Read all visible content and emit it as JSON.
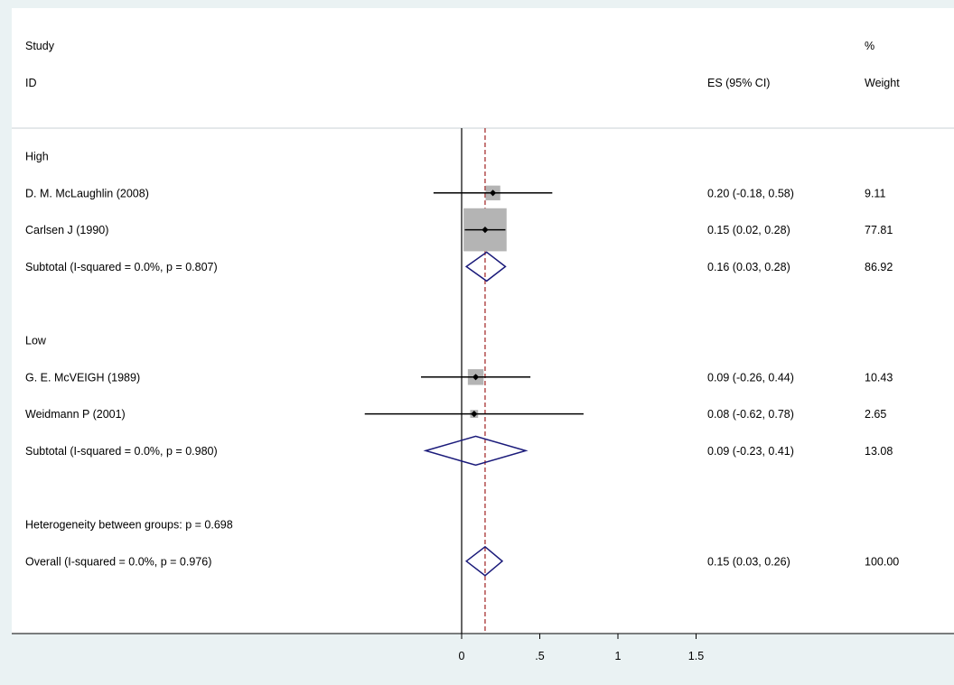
{
  "header": {
    "study_label": "Study",
    "id_label": "ID",
    "es_label": "ES (95% CI)",
    "pct_label": "%",
    "weight_label": "Weight"
  },
  "groups": [
    {
      "label": "High",
      "studies": [
        {
          "name": "D. M. McLaughlin (2008)",
          "es": 0.2,
          "lo": -0.18,
          "hi": 0.58,
          "ci_text": "0.20 (-0.18, 0.58)",
          "weight": 9.11,
          "weight_text": "9.11"
        },
        {
          "name": "Carlsen J (1990)",
          "es": 0.15,
          "lo": 0.02,
          "hi": 0.28,
          "ci_text": "0.15 (0.02, 0.28)",
          "weight": 77.81,
          "weight_text": "77.81"
        }
      ],
      "subtotal": {
        "label": "Subtotal  (I-squared = 0.0%, p = 0.807)",
        "es": 0.16,
        "lo": 0.03,
        "hi": 0.28,
        "ci_text": "0.16 (0.03, 0.28)",
        "weight_text": "86.92"
      }
    },
    {
      "label": "Low",
      "studies": [
        {
          "name": "G. E. McVEIGH (1989)",
          "es": 0.09,
          "lo": -0.26,
          "hi": 0.44,
          "ci_text": "0.09 (-0.26, 0.44)",
          "weight": 10.43,
          "weight_text": "10.43"
        },
        {
          "name": "Weidmann P (2001)",
          "es": 0.08,
          "lo": -0.62,
          "hi": 0.78,
          "ci_text": "0.08 (-0.62, 0.78)",
          "weight": 2.65,
          "weight_text": "2.65"
        }
      ],
      "subtotal": {
        "label": "Subtotal  (I-squared = 0.0%, p = 0.980)",
        "es": 0.09,
        "lo": -0.23,
        "hi": 0.41,
        "ci_text": "0.09 (-0.23, 0.41)",
        "weight_text": "13.08"
      }
    }
  ],
  "heterogeneity": "Heterogeneity between groups: p = 0.698",
  "overall": {
    "label": "Overall  (I-squared = 0.0%, p = 0.976)",
    "es": 0.15,
    "lo": 0.03,
    "hi": 0.26,
    "ci_text": "0.15 (0.03, 0.26)",
    "weight_text": "100.00"
  },
  "colors": {
    "box": "#b4b4b4",
    "diamond": "#1a1a7a",
    "ref_line": "#a02020",
    "background": "#eaf2f3",
    "panel": "#ffffff"
  },
  "chart_data": {
    "type": "forest",
    "x_ticks": [
      0,
      0.5,
      1,
      1.5
    ],
    "x_tick_labels": [
      "0",
      ".5",
      "1",
      "1.5"
    ],
    "null_line": 0,
    "overall_line": 0.15
  }
}
